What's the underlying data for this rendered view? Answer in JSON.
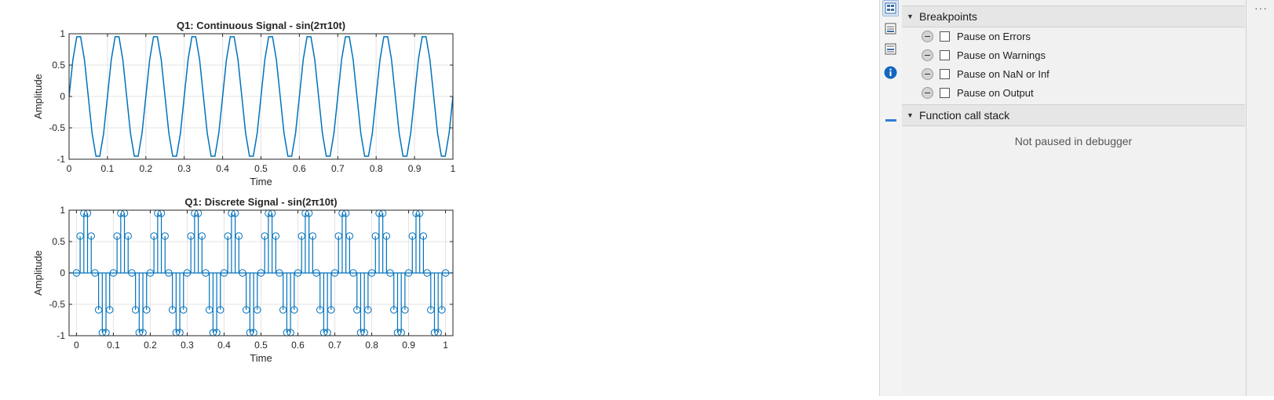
{
  "figure": {
    "chart_data": [
      {
        "type": "line",
        "title": "Q1: Continuous Signal - sin(2π10t)",
        "xlabel": "Time",
        "ylabel": "Amplitude",
        "xlim": [
          0,
          1
        ],
        "ylim": [
          -1,
          1
        ],
        "xticks": [
          "0",
          "0.1",
          "0.2",
          "0.3",
          "0.4",
          "0.5",
          "0.6",
          "0.7",
          "0.8",
          "0.9",
          "1"
        ],
        "yticks": [
          "-1",
          "-0.5",
          "0",
          "0.5",
          "1"
        ],
        "grid": true,
        "color": "#0072BD",
        "function": "sin(2*pi*10*t)",
        "x_start": 0,
        "x_end": 1,
        "x_step": 0.01
      },
      {
        "type": "stem",
        "title": "Q1: Discrete Signal - sin(2π10t)",
        "xlabel": "Time",
        "ylabel": "Amplitude",
        "xlim": [
          -0.02,
          1.02
        ],
        "ylim": [
          -1,
          1
        ],
        "xticks": [
          "0",
          "0.1",
          "0.2",
          "0.3",
          "0.4",
          "0.5",
          "0.6",
          "0.7",
          "0.8",
          "0.9",
          "1"
        ],
        "yticks": [
          "-1",
          "-0.5",
          "0",
          "0.5",
          "1"
        ],
        "grid": true,
        "color": "#0072BD",
        "function": "sin(2*pi*10*n)",
        "x_start": 0,
        "x_end": 1,
        "x_step": 0.01
      }
    ]
  },
  "toolbar": {
    "icons": [
      "debugger-panel-icon",
      "workspace-icon",
      "variables-icon",
      "info-icon"
    ]
  },
  "debugger": {
    "breakpoints_title": "Breakpoints",
    "breakpoints": [
      {
        "label": "Pause on Errors",
        "checked": false
      },
      {
        "label": "Pause on Warnings",
        "checked": false
      },
      {
        "label": "Pause on NaN or Inf",
        "checked": false
      },
      {
        "label": "Pause on Output",
        "checked": false
      }
    ],
    "callstack_title": "Function call stack",
    "callstack_empty": "Not paused in debugger"
  },
  "more_menu": "···"
}
